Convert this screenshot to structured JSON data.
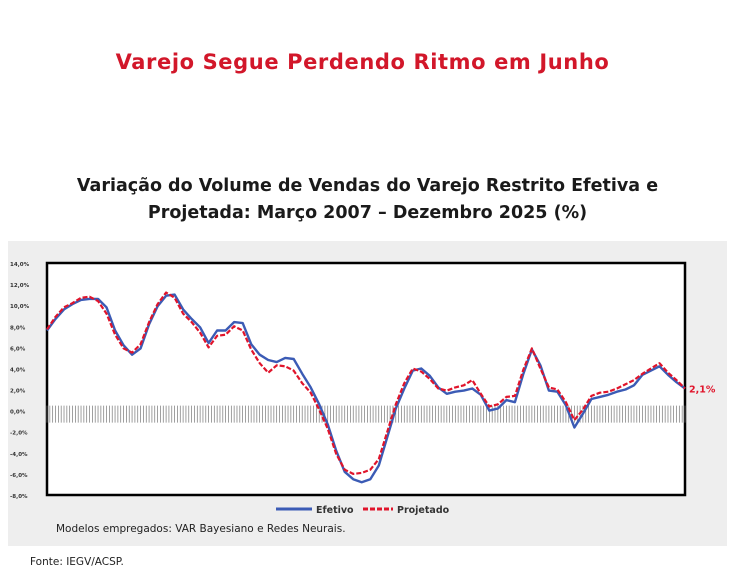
{
  "headline": "Varejo Segue Perdendo Ritmo em Junho",
  "chart_title_line1": "Variação do Volume de Vendas do Varejo Restrito Efetiva e",
  "chart_title_line2": "Projetada: Março 2007 – Dezembro 2025 (%)",
  "note": "Modelos empregados: VAR Bayesiano e Redes Neurais.",
  "source": "Fonte: IEGV/ACSP.",
  "colors": {
    "headline": "#d2172a",
    "efetivo": "#3b5bb5",
    "projetado": "#e0142b",
    "end_label": "#e0142b"
  },
  "chart_data": {
    "type": "line",
    "y_ticks": [
      "14,0%",
      "12,0%",
      "10,0%",
      "8,0%",
      "6,0%",
      "4,0%",
      "2,0%",
      "0,0%",
      "-2,0%",
      "-4,0%",
      "-6,0%",
      "-8,0%"
    ],
    "ylim": [
      -8,
      14
    ],
    "x_period": [
      "2007-03",
      "2025-12"
    ],
    "end_label": "2,1%",
    "legend_position": "bottom",
    "series": [
      {
        "name": "Efetivo",
        "style": "solid",
        "points": [
          [
            "2007-03",
            7.6
          ],
          [
            "2007-06",
            8.7
          ],
          [
            "2007-09",
            9.6
          ],
          [
            "2007-12",
            10.1
          ],
          [
            "2008-03",
            10.5
          ],
          [
            "2008-06",
            10.6
          ],
          [
            "2008-09",
            10.6
          ],
          [
            "2008-12",
            9.8
          ],
          [
            "2009-03",
            7.6
          ],
          [
            "2009-06",
            6.2
          ],
          [
            "2009-09",
            5.3
          ],
          [
            "2009-12",
            5.9
          ],
          [
            "2010-03",
            8.2
          ],
          [
            "2010-06",
            9.9
          ],
          [
            "2010-09",
            10.9
          ],
          [
            "2010-12",
            11.0
          ],
          [
            "2011-03",
            9.6
          ],
          [
            "2011-06",
            8.7
          ],
          [
            "2011-09",
            7.9
          ],
          [
            "2011-12",
            6.4
          ],
          [
            "2012-03",
            7.6
          ],
          [
            "2012-06",
            7.6
          ],
          [
            "2012-09",
            8.4
          ],
          [
            "2012-12",
            8.3
          ],
          [
            "2013-03",
            6.3
          ],
          [
            "2013-06",
            5.3
          ],
          [
            "2013-09",
            4.8
          ],
          [
            "2013-12",
            4.6
          ],
          [
            "2014-03",
            5.0
          ],
          [
            "2014-06",
            4.9
          ],
          [
            "2014-09",
            3.5
          ],
          [
            "2014-12",
            2.2
          ],
          [
            "2015-03",
            0.6
          ],
          [
            "2015-06",
            -1.3
          ],
          [
            "2015-09",
            -3.8
          ],
          [
            "2015-12",
            -5.8
          ],
          [
            "2016-03",
            -6.5
          ],
          [
            "2016-06",
            -6.8
          ],
          [
            "2016-09",
            -6.5
          ],
          [
            "2016-12",
            -5.2
          ],
          [
            "2017-03",
            -2.5
          ],
          [
            "2017-06",
            0.2
          ],
          [
            "2017-09",
            2.1
          ],
          [
            "2017-12",
            3.8
          ],
          [
            "2018-03",
            4.0
          ],
          [
            "2018-06",
            3.3
          ],
          [
            "2018-09",
            2.2
          ],
          [
            "2018-12",
            1.6
          ],
          [
            "2019-03",
            1.8
          ],
          [
            "2019-06",
            1.9
          ],
          [
            "2019-09",
            2.1
          ],
          [
            "2019-12",
            1.5
          ],
          [
            "2020-03",
            0.0
          ],
          [
            "2020-06",
            0.2
          ],
          [
            "2020-09",
            1.0
          ],
          [
            "2020-12",
            0.8
          ],
          [
            "2021-03",
            3.5
          ],
          [
            "2021-06",
            5.8
          ],
          [
            "2021-09",
            4.3
          ],
          [
            "2021-12",
            1.9
          ],
          [
            "2022-03",
            1.8
          ],
          [
            "2022-06",
            0.5
          ],
          [
            "2022-09",
            -1.6
          ],
          [
            "2022-12",
            -0.3
          ],
          [
            "2023-03",
            1.1
          ],
          [
            "2023-06",
            1.3
          ],
          [
            "2023-09",
            1.5
          ],
          [
            "2023-12",
            1.8
          ],
          [
            "2024-03",
            2.0
          ],
          [
            "2024-06",
            2.4
          ],
          [
            "2024-09",
            3.4
          ],
          [
            "2024-12",
            3.8
          ],
          [
            "2025-03",
            4.2
          ],
          [
            "2025-06",
            3.4
          ],
          [
            "2025-09",
            2.7
          ],
          [
            "2025-12",
            2.1
          ]
        ]
      },
      {
        "name": "Projetado",
        "style": "dashed",
        "points": [
          [
            "2007-03",
            7.7
          ],
          [
            "2007-06",
            8.9
          ],
          [
            "2007-09",
            9.8
          ],
          [
            "2007-12",
            10.2
          ],
          [
            "2008-03",
            10.7
          ],
          [
            "2008-06",
            10.8
          ],
          [
            "2008-09",
            10.4
          ],
          [
            "2008-12",
            9.2
          ],
          [
            "2009-03",
            7.2
          ],
          [
            "2009-06",
            5.9
          ],
          [
            "2009-09",
            5.5
          ],
          [
            "2009-12",
            6.3
          ],
          [
            "2010-03",
            8.4
          ],
          [
            "2010-06",
            10.1
          ],
          [
            "2010-09",
            11.2
          ],
          [
            "2010-12",
            10.7
          ],
          [
            "2011-03",
            9.2
          ],
          [
            "2011-06",
            8.4
          ],
          [
            "2011-09",
            7.4
          ],
          [
            "2011-12",
            6.0
          ],
          [
            "2012-03",
            7.1
          ],
          [
            "2012-06",
            7.2
          ],
          [
            "2012-09",
            8.0
          ],
          [
            "2012-12",
            7.6
          ],
          [
            "2013-03",
            5.8
          ],
          [
            "2013-06",
            4.5
          ],
          [
            "2013-09",
            3.6
          ],
          [
            "2013-12",
            4.3
          ],
          [
            "2014-03",
            4.2
          ],
          [
            "2014-06",
            3.8
          ],
          [
            "2014-09",
            2.6
          ],
          [
            "2014-12",
            1.7
          ],
          [
            "2015-03",
            0.1
          ],
          [
            "2015-06",
            -1.7
          ],
          [
            "2015-09",
            -4.1
          ],
          [
            "2015-12",
            -5.6
          ],
          [
            "2016-03",
            -6.0
          ],
          [
            "2016-06",
            -5.9
          ],
          [
            "2016-09",
            -5.6
          ],
          [
            "2016-12",
            -4.6
          ],
          [
            "2017-03",
            -2.0
          ],
          [
            "2017-06",
            0.6
          ],
          [
            "2017-09",
            2.6
          ],
          [
            "2017-12",
            4.0
          ],
          [
            "2018-03",
            3.7
          ],
          [
            "2018-06",
            3.0
          ],
          [
            "2018-09",
            2.1
          ],
          [
            "2018-12",
            1.9
          ],
          [
            "2019-03",
            2.2
          ],
          [
            "2019-06",
            2.4
          ],
          [
            "2019-09",
            2.9
          ],
          [
            "2019-12",
            1.6
          ],
          [
            "2020-03",
            0.4
          ],
          [
            "2020-06",
            0.6
          ],
          [
            "2020-09",
            1.3
          ],
          [
            "2020-12",
            1.4
          ],
          [
            "2021-03",
            3.9
          ],
          [
            "2021-06",
            5.9
          ],
          [
            "2021-09",
            4.0
          ],
          [
            "2021-12",
            2.2
          ],
          [
            "2022-03",
            2.0
          ],
          [
            "2022-06",
            0.8
          ],
          [
            "2022-09",
            -0.9
          ],
          [
            "2022-12",
            0.1
          ],
          [
            "2023-03",
            1.4
          ],
          [
            "2023-06",
            1.7
          ],
          [
            "2023-09",
            1.8
          ],
          [
            "2023-12",
            2.1
          ],
          [
            "2024-03",
            2.5
          ],
          [
            "2024-06",
            2.9
          ],
          [
            "2024-09",
            3.5
          ],
          [
            "2024-12",
            4.0
          ],
          [
            "2025-03",
            4.5
          ],
          [
            "2025-06",
            3.6
          ],
          [
            "2025-09",
            2.9
          ],
          [
            "2025-12",
            2.1
          ]
        ]
      }
    ]
  }
}
